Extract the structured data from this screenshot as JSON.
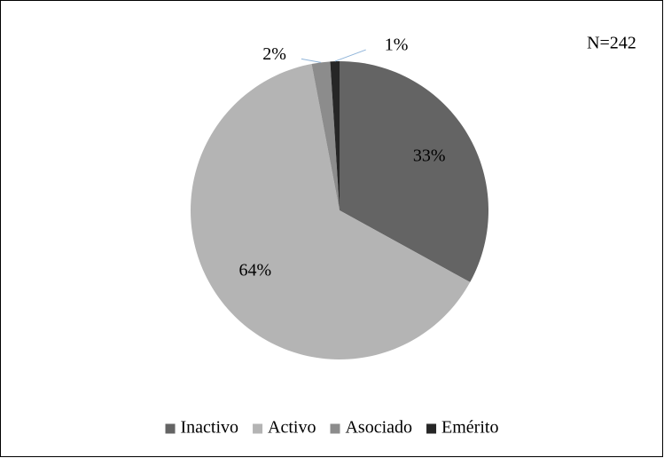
{
  "chart_data": {
    "type": "pie",
    "annotation": "N=242",
    "categories": [
      "Inactivo",
      "Activo",
      "Asociado",
      "Emérito"
    ],
    "values": [
      33,
      64,
      2,
      1
    ],
    "value_labels": [
      "33%",
      "64%",
      "2%",
      "1%"
    ],
    "colors": [
      "#646464",
      "#b4b4b4",
      "#8c8c8c",
      "#262626"
    ],
    "legend": "bottom"
  }
}
